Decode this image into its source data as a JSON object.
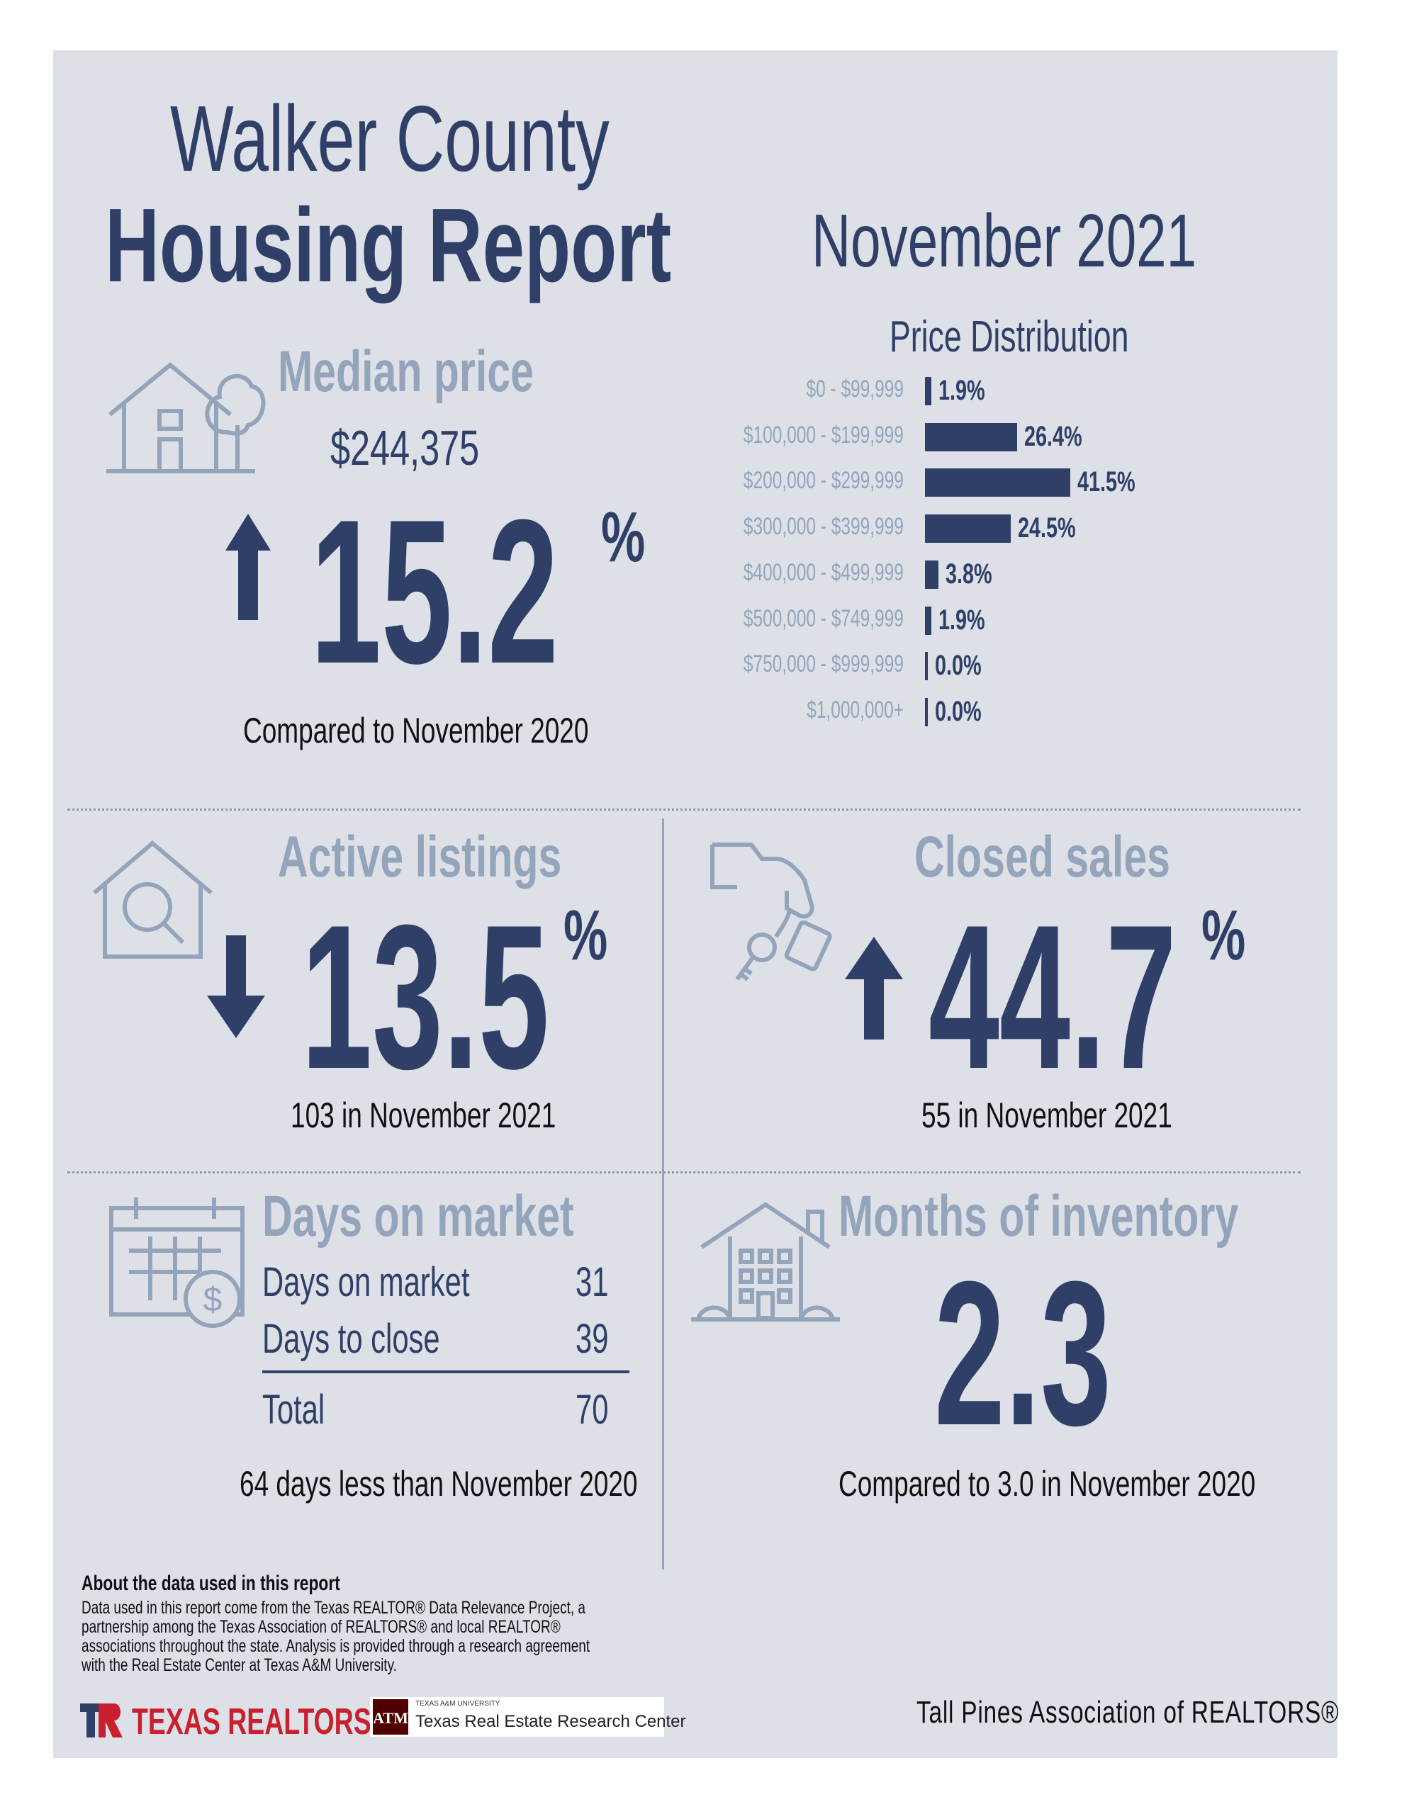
{
  "header": {
    "title_line1": "Walker County",
    "title_line2": "Housing Report",
    "period": "November 2021"
  },
  "median_price": {
    "heading": "Median price",
    "value": "$244,375",
    "change": "15.2",
    "unit": "%",
    "direction": "up",
    "note": "Compared to November 2020"
  },
  "chart_data": {
    "type": "bar",
    "title": "Price Distribution",
    "orientation": "horizontal",
    "categories": [
      "$0 - $99,999",
      "$100,000 - $199,999",
      "$200,000 - $299,999",
      "$300,000 - $399,999",
      "$400,000 - $499,999",
      "$500,000 - $749,999",
      "$750,000 - $999,999",
      "$1,000,000+"
    ],
    "values": [
      1.9,
      26.4,
      41.5,
      24.5,
      3.8,
      1.9,
      0.0,
      0.0
    ],
    "value_labels": [
      "1.9%",
      "26.4%",
      "41.5%",
      "24.5%",
      "3.8%",
      "1.9%",
      "0.0%",
      "0.0%"
    ]
  },
  "active_listings": {
    "heading": "Active listings",
    "change": "13.5",
    "unit": "%",
    "direction": "down",
    "note": "103 in November 2021"
  },
  "closed_sales": {
    "heading": "Closed sales",
    "change": "44.7",
    "unit": "%",
    "direction": "up",
    "note": "55 in November 2021"
  },
  "days_on_market": {
    "heading": "Days on market",
    "rows": [
      {
        "label": "Days on market",
        "value": "31"
      },
      {
        "label": "Days to close",
        "value": "39"
      }
    ],
    "total_label": "Total",
    "total_value": "70",
    "note": "64 days less than November 2020"
  },
  "months_inventory": {
    "heading": "Months of inventory",
    "value": "2.3",
    "note": "Compared to 3.0 in November 2020"
  },
  "footer": {
    "about_title": "About the data used in this report",
    "about_line1": "Data used in this report come from the Texas REALTOR® Data Relevance Project, a",
    "about_line2": "partnership among the Texas Association of REALTORS® and local REALTOR®",
    "about_line3": "associations throughout the state. Analysis is provided through a research agreement",
    "about_line4": "with the Real Estate Center at Texas A&M University.",
    "texas_realtors": "TEXAS REALTORS",
    "tamu_small": "TEXAS A&M UNIVERSITY",
    "tamu_center": "Texas Real Estate Research Center",
    "association": "Tall Pines Association of REALTORS®"
  },
  "colors": {
    "navy": "#2f3f68",
    "muted": "#93a4bb",
    "panel": "#dde1e7",
    "red": "#c8202f"
  }
}
